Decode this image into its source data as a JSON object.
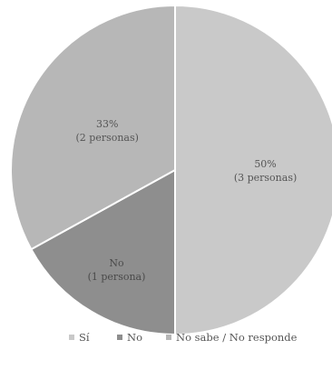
{
  "chart_data": {
    "type": "pie",
    "slices": [
      {
        "name": "Sí",
        "value": 50,
        "label_pct": "50%",
        "label_sub": "(3 personas)",
        "color": "#c9c9c9"
      },
      {
        "name": "No",
        "value": 17,
        "label_pct": "No",
        "label_sub": "(1 persona)",
        "color": "#8e8e8e"
      },
      {
        "name": "No sabe / No responde",
        "value": 33,
        "label_pct": "33%",
        "label_sub": "(2 personas)",
        "color": "#b7b7b7"
      }
    ],
    "legend": [
      "Sí",
      "No",
      "No sabe / No responde"
    ],
    "legend_position": "bottom"
  }
}
